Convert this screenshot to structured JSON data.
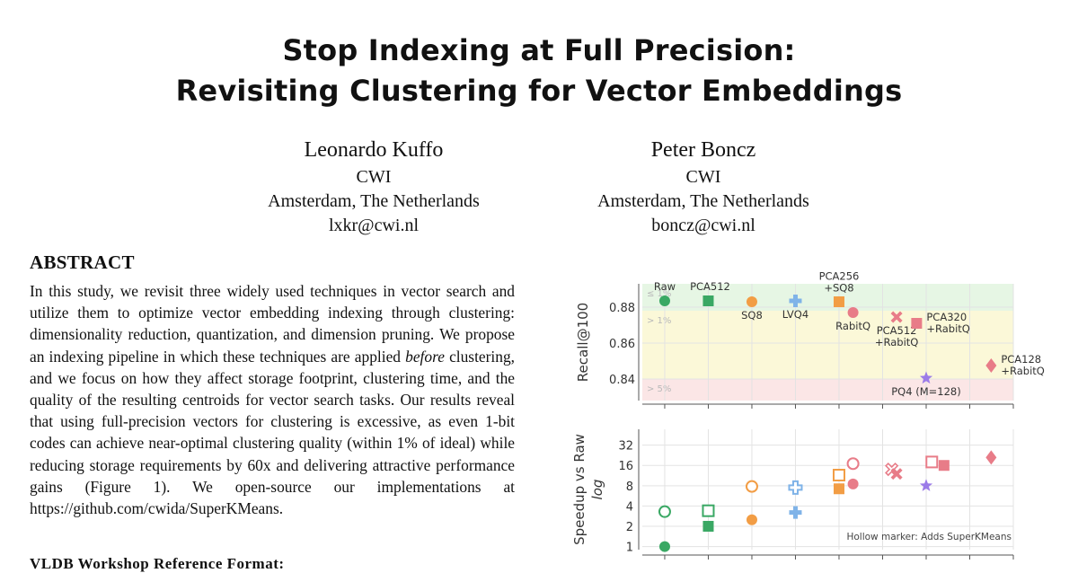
{
  "paper": {
    "title_line1": "Stop Indexing at Full Precision:",
    "title_line2": "Revisiting Clustering for Vector Embeddings"
  },
  "authors": [
    {
      "name": "Leonardo Kuffo",
      "affiliation": "CWI",
      "location": "Amsterdam, The Netherlands",
      "email": "lxkr@cwi.nl"
    },
    {
      "name": "Peter Boncz",
      "affiliation": "CWI",
      "location": "Amsterdam, The Netherlands",
      "email": "boncz@cwi.nl"
    }
  ],
  "abstract": {
    "heading": "ABSTRACT",
    "text_before": "In this study, we revisit three widely used techniques in vector search and utilize them to optimize vector embedding indexing through clustering: dimensionality reduction, quantization, and dimension pruning. We propose an indexing pipeline in which these techniques are applied ",
    "emphasis": "before",
    "text_after": " clustering, and we focus on how they affect storage footprint, clustering time, and the quality of the resulting centroids for vector search tasks. Our results reveal that using full-precision vectors for clustering is excessive, as even 1-bit codes can achieve near-optimal clustering quality (within 1% of ideal) while reducing storage requirements by 60x and delivering attractive performance gains (Figure ",
    "figure_ref": "1",
    "text_end": "). We open-source our implementations at https://github.com/cwida/SuperKMeans."
  },
  "next_heading": "VLDB Workshop Reference Format:",
  "colors": {
    "green": "#3aa864",
    "orange": "#f29d45",
    "blue": "#7fb3e8",
    "red": "#e87c88",
    "purple": "#9b7be8",
    "band_green": "#e6f6e4",
    "band_yellow": "#fbf8d8",
    "band_pink": "#fbe6e6"
  },
  "chart_data": [
    {
      "type": "scatter",
      "title": "",
      "xlabel": "",
      "ylabel": "Recall@100",
      "x_scale": "log2",
      "xlim": [
        0.7,
        256
      ],
      "ylim": [
        0.828,
        0.893
      ],
      "yticks": [
        "0.84",
        "0.86",
        "0.88"
      ],
      "yticks_values": [
        0.84,
        0.86,
        0.88
      ],
      "bands": [
        {
          "label": "≤ 1%",
          "from": 0.878,
          "to": 0.893,
          "color": "band_green"
        },
        {
          "label": "> 1%",
          "from": 0.84,
          "to": 0.878,
          "color": "band_yellow"
        },
        {
          "label": "> 5%",
          "from": 0.828,
          "to": 0.84,
          "color": "band_pink"
        }
      ],
      "points": [
        {
          "label": "Raw",
          "x": 1,
          "y": 0.8835,
          "marker": "circle",
          "color": "green",
          "label_pos": "above"
        },
        {
          "label": "PCA512",
          "x": 2,
          "y": 0.8835,
          "marker": "square",
          "color": "green",
          "label_pos": "above-right"
        },
        {
          "label": "SQ8",
          "x": 4,
          "y": 0.883,
          "marker": "circle",
          "color": "orange",
          "label_pos": "below"
        },
        {
          "label": "LVQ4",
          "x": 8,
          "y": 0.8835,
          "marker": "plus",
          "color": "blue",
          "label_pos": "below"
        },
        {
          "label": "PCA256\n+SQ8",
          "x": 16,
          "y": 0.883,
          "marker": "square",
          "color": "orange",
          "label_pos": "above"
        },
        {
          "label": "RabitQ",
          "x": 20,
          "y": 0.877,
          "marker": "circle",
          "color": "red",
          "label_pos": "below"
        },
        {
          "label": "PCA512\n+RabitQ",
          "x": 40,
          "y": 0.8745,
          "marker": "cross",
          "color": "red",
          "label_pos": "below"
        },
        {
          "label": "PCA320\n+RabitQ",
          "x": 55,
          "y": 0.871,
          "marker": "square",
          "color": "red",
          "label_pos": "right"
        },
        {
          "label": "PQ4 (M=128)",
          "x": 64,
          "y": 0.8405,
          "marker": "star",
          "color": "purple",
          "label_pos": "below"
        },
        {
          "label": "PCA128\n+RabitQ",
          "x": 180,
          "y": 0.8475,
          "marker": "diamond",
          "color": "red",
          "label_pos": "right"
        }
      ]
    },
    {
      "type": "scatter",
      "title": "",
      "xlabel": "",
      "ylabel": "Speedup vs Raw",
      "ylabel2": "log",
      "x_scale": "log2",
      "y_scale": "log2",
      "xlim": [
        0.7,
        256
      ],
      "ylim": [
        0.9,
        55
      ],
      "yticks": [
        "1",
        "2",
        "4",
        "8",
        "16",
        "32"
      ],
      "yticks_values": [
        1,
        2,
        4,
        8,
        16,
        32
      ],
      "xticks": [
        "1",
        "2",
        "4",
        "8",
        "16",
        "32",
        "64",
        "128",
        "256"
      ],
      "xticks_values": [
        1,
        2,
        4,
        8,
        16,
        32,
        64,
        128,
        256
      ],
      "note": "Hollow marker: Adds SuperKMeans",
      "points": [
        {
          "x": 1,
          "y": 1,
          "marker": "circle",
          "color": "green",
          "hollow": false
        },
        {
          "x": 1,
          "y": 3.3,
          "marker": "circle",
          "color": "green",
          "hollow": true
        },
        {
          "x": 2,
          "y": 2,
          "marker": "square",
          "color": "green",
          "hollow": false
        },
        {
          "x": 2,
          "y": 3.4,
          "marker": "square",
          "color": "green",
          "hollow": true
        },
        {
          "x": 4,
          "y": 2.5,
          "marker": "circle",
          "color": "orange",
          "hollow": false
        },
        {
          "x": 4,
          "y": 7.8,
          "marker": "circle",
          "color": "orange",
          "hollow": true
        },
        {
          "x": 8,
          "y": 3.2,
          "marker": "plus",
          "color": "blue",
          "hollow": false
        },
        {
          "x": 8,
          "y": 7.5,
          "marker": "plus",
          "color": "blue",
          "hollow": true
        },
        {
          "x": 16,
          "y": 7.2,
          "marker": "square",
          "color": "orange",
          "hollow": false
        },
        {
          "x": 16,
          "y": 11.5,
          "marker": "square",
          "color": "orange",
          "hollow": true
        },
        {
          "x": 20,
          "y": 8.5,
          "marker": "circle",
          "color": "red",
          "hollow": false
        },
        {
          "x": 20,
          "y": 17,
          "marker": "circle",
          "color": "red",
          "hollow": true
        },
        {
          "x": 37,
          "y": 14,
          "marker": "cross",
          "color": "red",
          "hollow": true
        },
        {
          "x": 40,
          "y": 12,
          "marker": "cross",
          "color": "red",
          "hollow": false
        },
        {
          "x": 64,
          "y": 8,
          "marker": "star",
          "color": "purple",
          "hollow": false
        },
        {
          "x": 70,
          "y": 18,
          "marker": "square",
          "color": "red",
          "hollow": true
        },
        {
          "x": 85,
          "y": 16,
          "marker": "square",
          "color": "red",
          "hollow": false
        },
        {
          "x": 180,
          "y": 21,
          "marker": "diamond",
          "color": "red",
          "hollow": false
        }
      ]
    }
  ]
}
